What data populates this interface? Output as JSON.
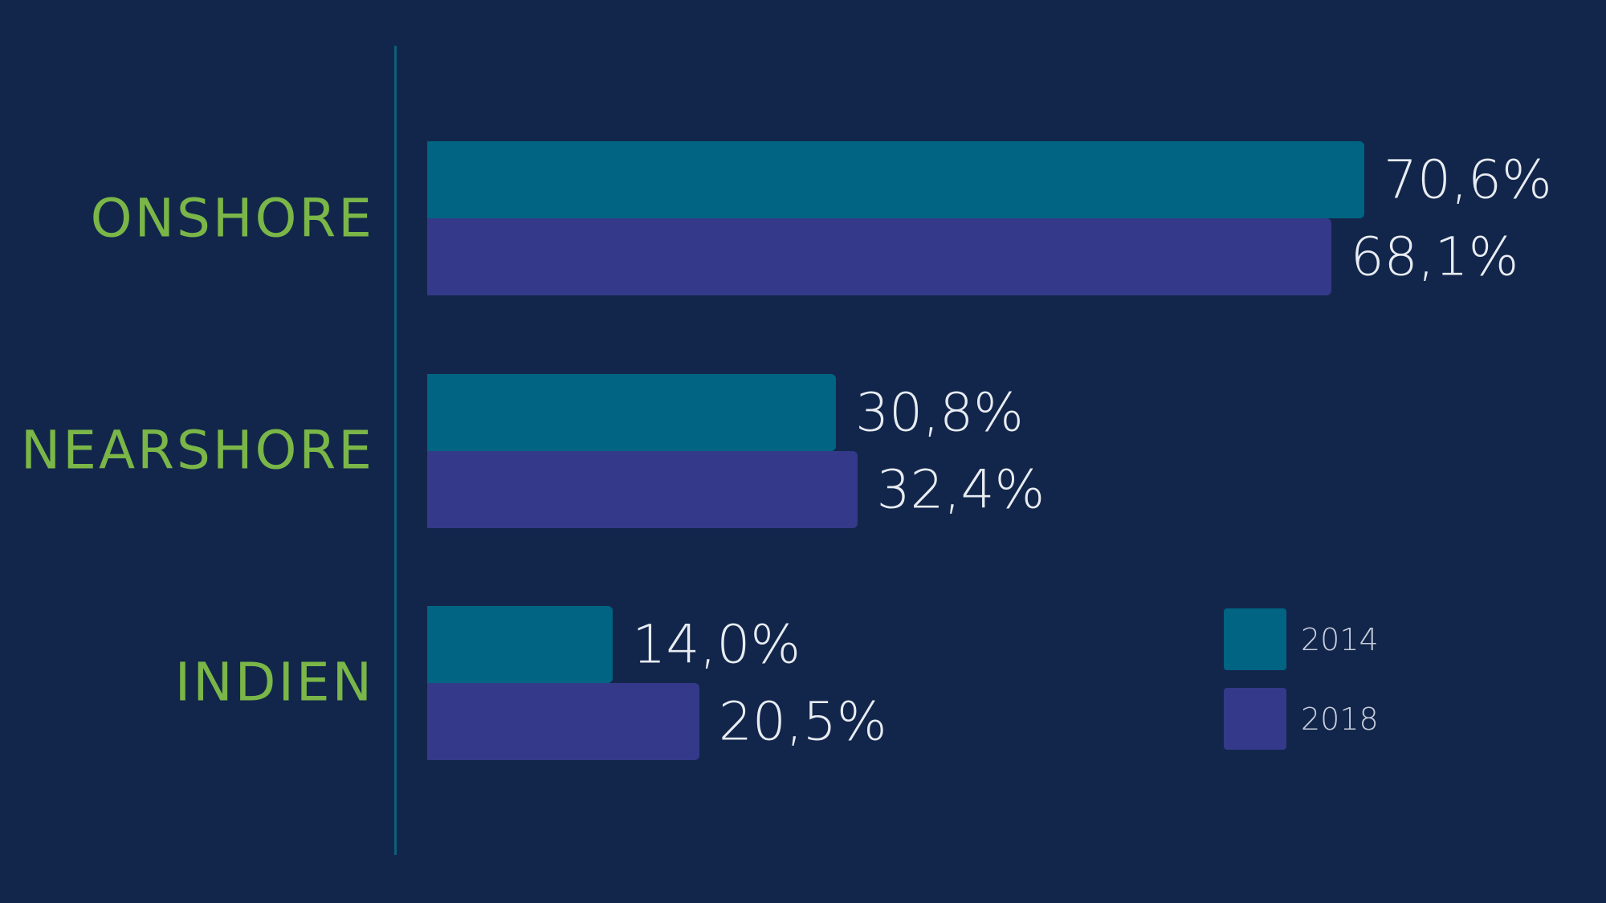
{
  "chart_data": {
    "type": "bar",
    "orientation": "horizontal",
    "categories": [
      "ONSHORE",
      "NEARSHORE",
      "INDIEN"
    ],
    "series": [
      {
        "name": "2014",
        "values": [
          70.6,
          30.8,
          14.0
        ],
        "labels": [
          "70,6%",
          "30,8%",
          "14,0%"
        ],
        "color": "#006482"
      },
      {
        "name": "2018",
        "values": [
          68.1,
          32.4,
          20.5
        ],
        "labels": [
          "68,1%",
          "32,4%",
          "20,5%"
        ],
        "color": "#343a89"
      }
    ],
    "xlim": [
      0,
      100
    ],
    "grid": false,
    "legend_position": "bottom-right",
    "category_color": "#7ab648",
    "background": "#12264b"
  }
}
